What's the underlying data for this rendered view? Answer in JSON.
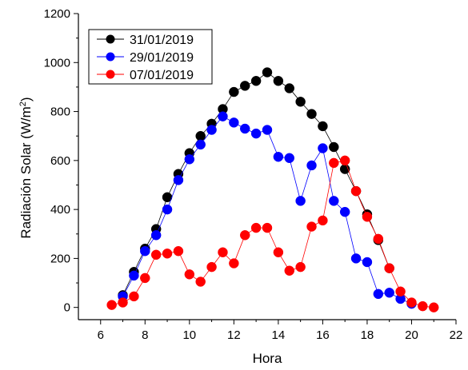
{
  "chart_data": {
    "type": "line",
    "xlabel": "Hora",
    "ylabel_main": "Radiación Solar (W/m",
    "ylabel_sup": "2",
    "ylabel_close": ")",
    "xlim": [
      5,
      22
    ],
    "ylim": [
      -50,
      1200
    ],
    "xticks": [
      6,
      8,
      10,
      12,
      14,
      16,
      18,
      20,
      22
    ],
    "yticks": [
      0,
      200,
      400,
      600,
      800,
      1000,
      1200
    ],
    "legend_position": "top-left",
    "series": [
      {
        "name": "31/01/2019",
        "color": "#000000",
        "x": [
          7,
          7.5,
          8,
          8.5,
          9,
          9.5,
          10,
          10.5,
          11,
          11.5,
          12,
          12.5,
          13,
          13.5,
          14,
          14.5,
          15,
          15.5,
          16,
          16.5,
          17,
          17.5,
          18,
          18.5,
          19
        ],
        "y": [
          50,
          145,
          240,
          320,
          450,
          545,
          630,
          700,
          750,
          810,
          880,
          905,
          925,
          960,
          925,
          895,
          840,
          790,
          740,
          655,
          565,
          475,
          380,
          275,
          160
        ]
      },
      {
        "name": "29/01/2019",
        "color": "#0000ff",
        "x": [
          7,
          7.5,
          8,
          8.5,
          9,
          9.5,
          10,
          10.5,
          11,
          11.5,
          12,
          12.5,
          13,
          13.5,
          14,
          14.5,
          15,
          15.5,
          16,
          16.5,
          17,
          17.5,
          18,
          18.5,
          19,
          19.5,
          20
        ],
        "y": [
          45,
          130,
          230,
          295,
          400,
          520,
          605,
          665,
          725,
          780,
          755,
          730,
          710,
          725,
          615,
          610,
          435,
          580,
          650,
          435,
          390,
          200,
          185,
          55,
          60,
          35,
          15
        ]
      },
      {
        "name": "07/01/2019",
        "color": "#ff0000",
        "x": [
          6.5,
          7,
          7.5,
          8,
          8.5,
          9,
          9.5,
          10,
          10.5,
          11,
          11.5,
          12,
          12.5,
          13,
          13.5,
          14,
          14.5,
          15,
          15.5,
          16,
          16.5,
          17,
          17.5,
          18,
          18.5,
          19,
          19.5,
          20,
          20.5,
          21
        ],
        "y": [
          10,
          20,
          45,
          120,
          215,
          220,
          230,
          135,
          105,
          165,
          225,
          180,
          295,
          325,
          325,
          225,
          150,
          165,
          330,
          355,
          590,
          600,
          475,
          370,
          280,
          160,
          65,
          20,
          5,
          0
        ]
      }
    ]
  }
}
